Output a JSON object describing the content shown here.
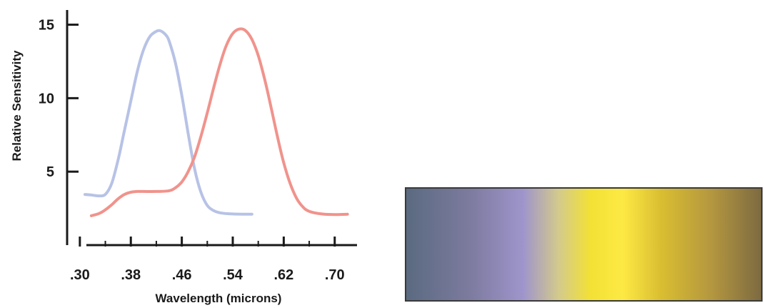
{
  "chart_data": {
    "type": "line",
    "xlabel": "Wavelength (microns)",
    "ylabel": "Relative Sensitivity",
    "xlim": [
      0.28,
      0.735
    ],
    "ylim": [
      0,
      16
    ],
    "x_tick_values": [
      0.3,
      0.38,
      0.46,
      0.54,
      0.62,
      0.7
    ],
    "x_tick_labels": [
      ".30",
      ".38",
      ".46",
      ".54",
      ".62",
      ".70"
    ],
    "x_minor_ticks": [
      0.34,
      0.42,
      0.5,
      0.58,
      0.66
    ],
    "y_tick_values": [
      5,
      10,
      15
    ],
    "y_tick_labels": [
      "5",
      "10",
      "15"
    ],
    "grid": false,
    "series": [
      {
        "color": "#b7c2e6",
        "x": [
          0.308,
          0.32,
          0.33,
          0.34,
          0.35,
          0.36,
          0.37,
          0.38,
          0.39,
          0.4,
          0.41,
          0.42,
          0.425,
          0.43,
          0.435,
          0.44,
          0.45,
          0.46,
          0.47,
          0.48,
          0.49,
          0.5,
          0.51,
          0.52,
          0.54,
          0.57
        ],
        "y": [
          3.45,
          3.4,
          3.35,
          3.45,
          4.2,
          5.8,
          7.8,
          9.8,
          11.8,
          13.3,
          14.2,
          14.55,
          14.6,
          14.5,
          14.3,
          13.9,
          12.4,
          10.2,
          7.6,
          5.2,
          3.6,
          2.7,
          2.35,
          2.2,
          2.12,
          2.1
        ]
      },
      {
        "color": "#f0938c",
        "x": [
          0.318,
          0.33,
          0.34,
          0.35,
          0.36,
          0.37,
          0.38,
          0.39,
          0.4,
          0.42,
          0.44,
          0.45,
          0.46,
          0.47,
          0.48,
          0.49,
          0.5,
          0.51,
          0.52,
          0.53,
          0.54,
          0.55,
          0.56,
          0.57,
          0.58,
          0.59,
          0.6,
          0.61,
          0.62,
          0.63,
          0.64,
          0.65,
          0.66,
          0.68,
          0.7,
          0.72
        ],
        "y": [
          2.0,
          2.15,
          2.4,
          2.75,
          3.15,
          3.45,
          3.6,
          3.65,
          3.65,
          3.65,
          3.7,
          3.9,
          4.3,
          5.0,
          6.0,
          7.4,
          9.0,
          10.7,
          12.3,
          13.6,
          14.4,
          14.7,
          14.6,
          14.0,
          12.9,
          11.3,
          9.4,
          7.4,
          5.6,
          4.2,
          3.2,
          2.6,
          2.3,
          2.12,
          2.08,
          2.1
        ]
      }
    ]
  },
  "spectrum_bar": {
    "gradient_stops": [
      {
        "offset": 0,
        "color": "#5a6a80"
      },
      {
        "offset": 18,
        "color": "#7d7b9f"
      },
      {
        "offset": 33,
        "color": "#9f95cc"
      },
      {
        "offset": 43,
        "color": "#d4ca8c"
      },
      {
        "offset": 52,
        "color": "#f3e135"
      },
      {
        "offset": 61,
        "color": "#fde944"
      },
      {
        "offset": 72,
        "color": "#d9bd31"
      },
      {
        "offset": 86,
        "color": "#b4973f"
      },
      {
        "offset": 100,
        "color": "#7d6a41"
      }
    ]
  }
}
